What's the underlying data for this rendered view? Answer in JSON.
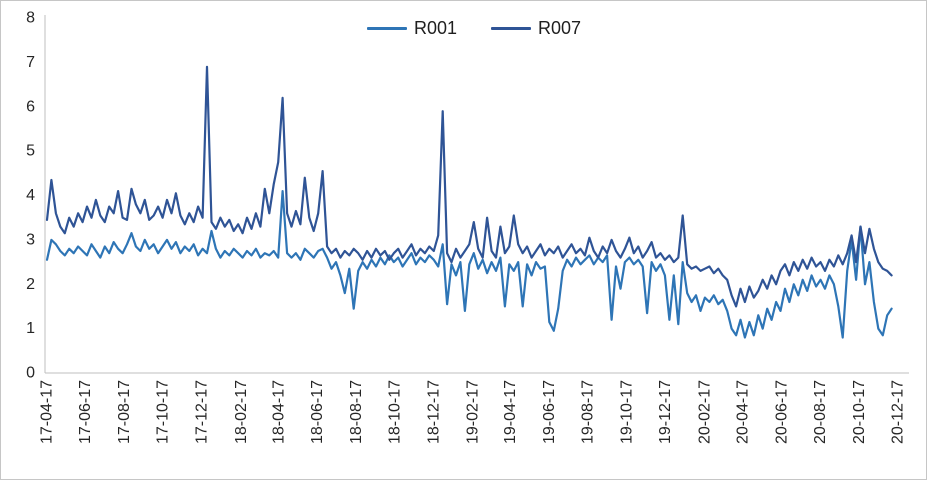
{
  "colors": {
    "background": "#FFFFFF",
    "border": "#C6C6C6",
    "axis": "#BFBFBF",
    "tick_text": "#262626",
    "legend_text": "#1F1F1F",
    "series_r001": "#2E75B6",
    "series_r007": "#2F5496"
  },
  "legend": {
    "position": "top-center",
    "items": [
      {
        "label": "R001",
        "color": "#2E75B6"
      },
      {
        "label": "R007",
        "color": "#2F5496"
      }
    ]
  },
  "chart_data": {
    "type": "line",
    "title": "",
    "xlabel": "",
    "ylabel": "",
    "grid": false,
    "legend_position": "top-center",
    "x": {
      "interval": "weekly",
      "step_days": 7,
      "tick_labels": [
        "17-04-17",
        "17-06-17",
        "17-08-17",
        "17-10-17",
        "17-12-17",
        "18-02-17",
        "18-04-17",
        "18-06-17",
        "18-08-17",
        "18-10-17",
        "18-12-17",
        "19-02-17",
        "19-04-17",
        "19-06-17",
        "19-08-17",
        "19-10-17",
        "19-12-17",
        "20-02-17",
        "20-04-17",
        "20-06-17",
        "20-08-17",
        "20-10-17",
        "20-12-17"
      ]
    },
    "y": {
      "min": 0,
      "max": 8,
      "ticks": [
        0,
        1,
        2,
        3,
        4,
        5,
        6,
        7,
        8
      ]
    },
    "series": [
      {
        "name": "R001",
        "color": "#2E75B6",
        "values": [
          2.55,
          3.0,
          2.9,
          2.75,
          2.65,
          2.8,
          2.7,
          2.85,
          2.75,
          2.65,
          2.9,
          2.75,
          2.6,
          2.85,
          2.7,
          2.95,
          2.8,
          2.7,
          2.9,
          3.15,
          2.85,
          2.75,
          3.0,
          2.8,
          2.9,
          2.7,
          2.85,
          3.0,
          2.8,
          2.95,
          2.7,
          2.85,
          2.75,
          2.9,
          2.65,
          2.8,
          2.7,
          3.2,
          2.8,
          2.6,
          2.75,
          2.65,
          2.8,
          2.7,
          2.6,
          2.75,
          2.65,
          2.8,
          2.6,
          2.7,
          2.65,
          2.75,
          2.6,
          4.1,
          2.7,
          2.6,
          2.7,
          2.55,
          2.8,
          2.7,
          2.6,
          2.75,
          2.8,
          2.6,
          2.35,
          2.5,
          2.2,
          1.8,
          2.35,
          1.45,
          2.3,
          2.5,
          2.35,
          2.55,
          2.4,
          2.6,
          2.45,
          2.65,
          2.5,
          2.6,
          2.4,
          2.55,
          2.7,
          2.45,
          2.6,
          2.5,
          2.65,
          2.55,
          2.4,
          2.9,
          1.55,
          2.45,
          2.2,
          2.5,
          1.4,
          2.45,
          2.7,
          2.35,
          2.55,
          2.25,
          2.5,
          2.3,
          2.6,
          1.5,
          2.45,
          2.3,
          2.5,
          1.5,
          2.45,
          2.2,
          2.5,
          2.35,
          2.4,
          1.15,
          0.95,
          1.45,
          2.3,
          2.55,
          2.4,
          2.6,
          2.45,
          2.55,
          2.65,
          2.45,
          2.6,
          2.5,
          2.65,
          1.2,
          2.4,
          1.9,
          2.5,
          2.6,
          2.45,
          2.55,
          2.4,
          1.35,
          2.5,
          2.3,
          2.45,
          2.2,
          1.2,
          2.2,
          1.1,
          2.5,
          1.8,
          1.6,
          1.75,
          1.4,
          1.7,
          1.6,
          1.75,
          1.55,
          1.65,
          1.4,
          1.0,
          0.85,
          1.2,
          0.8,
          1.15,
          0.85,
          1.3,
          1.0,
          1.45,
          1.2,
          1.6,
          1.4,
          1.9,
          1.6,
          2.0,
          1.75,
          2.1,
          1.85,
          2.2,
          1.95,
          2.1,
          1.9,
          2.2,
          2.0,
          1.5,
          0.8,
          2.3,
          3.0,
          2.1,
          3.3,
          2.0,
          2.5,
          1.6,
          1.0,
          0.85,
          1.3,
          1.45
        ]
      },
      {
        "name": "R007",
        "color": "#2F5496",
        "values": [
          3.45,
          4.35,
          3.6,
          3.3,
          3.15,
          3.5,
          3.3,
          3.6,
          3.4,
          3.75,
          3.5,
          3.9,
          3.55,
          3.4,
          3.75,
          3.6,
          4.1,
          3.5,
          3.45,
          4.15,
          3.8,
          3.6,
          3.9,
          3.45,
          3.55,
          3.75,
          3.5,
          3.9,
          3.6,
          4.05,
          3.55,
          3.35,
          3.6,
          3.4,
          3.75,
          3.5,
          6.9,
          3.4,
          3.25,
          3.5,
          3.3,
          3.45,
          3.2,
          3.35,
          3.15,
          3.5,
          3.25,
          3.6,
          3.3,
          4.15,
          3.6,
          4.25,
          4.75,
          6.2,
          3.6,
          3.3,
          3.65,
          3.35,
          4.4,
          3.5,
          3.2,
          3.6,
          4.55,
          2.85,
          2.7,
          2.8,
          2.6,
          2.75,
          2.65,
          2.8,
          2.7,
          2.55,
          2.75,
          2.6,
          2.8,
          2.65,
          2.75,
          2.55,
          2.7,
          2.8,
          2.6,
          2.75,
          2.9,
          2.65,
          2.8,
          2.7,
          2.85,
          2.75,
          3.1,
          5.9,
          2.7,
          2.5,
          2.8,
          2.6,
          2.75,
          2.9,
          3.4,
          2.8,
          2.6,
          3.5,
          2.75,
          2.6,
          3.3,
          2.7,
          2.85,
          3.55,
          2.9,
          2.7,
          2.85,
          2.6,
          2.75,
          2.9,
          2.65,
          2.8,
          2.7,
          2.85,
          2.6,
          2.75,
          2.9,
          2.7,
          2.8,
          2.65,
          3.05,
          2.75,
          2.6,
          2.85,
          2.7,
          3.0,
          2.75,
          2.6,
          2.8,
          3.05,
          2.7,
          2.85,
          2.6,
          2.75,
          2.95,
          2.6,
          2.7,
          2.55,
          2.65,
          2.5,
          2.6,
          3.55,
          2.45,
          2.35,
          2.4,
          2.3,
          2.35,
          2.4,
          2.25,
          2.35,
          2.2,
          2.1,
          1.75,
          1.5,
          1.9,
          1.6,
          1.95,
          1.7,
          1.85,
          2.1,
          1.9,
          2.2,
          2.0,
          2.3,
          2.45,
          2.2,
          2.5,
          2.3,
          2.55,
          2.35,
          2.6,
          2.4,
          2.5,
          2.3,
          2.55,
          2.4,
          2.65,
          2.45,
          2.7,
          3.1,
          2.5,
          3.3,
          2.7,
          3.25,
          2.8,
          2.5,
          2.35,
          2.3,
          2.2
        ]
      }
    ]
  }
}
